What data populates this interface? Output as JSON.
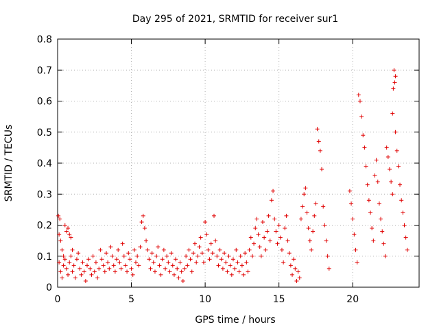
{
  "chart_data": {
    "type": "scatter",
    "title": "Day 295 of 2021, SRMTID for receiver sur1",
    "xlabel": "GPS time / hours",
    "ylabel": "SRMTID / TECUs",
    "xlim": [
      0,
      24.5
    ],
    "ylim": [
      0,
      0.8
    ],
    "x_ticks": [
      0,
      5,
      10,
      15,
      20
    ],
    "x_tick_labels": [
      "0",
      "5",
      "10",
      "15",
      "20"
    ],
    "y_ticks": [
      0,
      0.1,
      0.2,
      0.3,
      0.4,
      0.5,
      0.6,
      0.7,
      0.8
    ],
    "y_tick_labels": [
      "0",
      "0.1",
      "0.2",
      "0.3",
      "0.4",
      "0.5",
      "0.6",
      "0.7",
      "0.8"
    ],
    "grid": true,
    "marker": "+",
    "marker_color": "#e00000",
    "series": [
      {
        "name": "sur1",
        "points": [
          [
            0.05,
            0.23
          ],
          [
            0.15,
            0.22
          ],
          [
            0.1,
            0.17
          ],
          [
            0.2,
            0.15
          ],
          [
            0.3,
            0.12
          ],
          [
            0.4,
            0.1
          ],
          [
            0.5,
            0.2
          ],
          [
            0.6,
            0.18
          ],
          [
            0.7,
            0.19
          ],
          [
            0.8,
            0.17
          ],
          [
            0.9,
            0.16
          ],
          [
            1.0,
            0.12
          ],
          [
            0.1,
            0.08
          ],
          [
            0.2,
            0.05
          ],
          [
            0.3,
            0.03
          ],
          [
            0.4,
            0.07
          ],
          [
            0.5,
            0.09
          ],
          [
            0.6,
            0.06
          ],
          [
            0.7,
            0.04
          ],
          [
            0.8,
            0.08
          ],
          [
            0.9,
            0.1
          ],
          [
            1.0,
            0.05
          ],
          [
            1.1,
            0.07
          ],
          [
            1.2,
            0.03
          ],
          [
            1.3,
            0.09
          ],
          [
            1.4,
            0.11
          ],
          [
            1.5,
            0.06
          ],
          [
            1.6,
            0.04
          ],
          [
            1.7,
            0.08
          ],
          [
            1.8,
            0.05
          ],
          [
            1.9,
            0.02
          ],
          [
            2.0,
            0.07
          ],
          [
            2.1,
            0.09
          ],
          [
            2.2,
            0.06
          ],
          [
            2.3,
            0.04
          ],
          [
            2.4,
            0.1
          ],
          [
            2.5,
            0.05
          ],
          [
            2.6,
            0.08
          ],
          [
            2.7,
            0.03
          ],
          [
            2.8,
            0.06
          ],
          [
            2.9,
            0.12
          ],
          [
            3.0,
            0.09
          ],
          [
            3.1,
            0.07
          ],
          [
            3.2,
            0.05
          ],
          [
            3.3,
            0.11
          ],
          [
            3.4,
            0.08
          ],
          [
            3.5,
            0.06
          ],
          [
            3.6,
            0.13
          ],
          [
            3.7,
            0.1
          ],
          [
            3.8,
            0.07
          ],
          [
            3.9,
            0.05
          ],
          [
            4.0,
            0.09
          ],
          [
            4.1,
            0.12
          ],
          [
            4.2,
            0.08
          ],
          [
            4.3,
            0.06
          ],
          [
            4.4,
            0.14
          ],
          [
            4.5,
            0.1
          ],
          [
            4.6,
            0.07
          ],
          [
            4.7,
            0.05
          ],
          [
            4.8,
            0.11
          ],
          [
            4.9,
            0.09
          ],
          [
            5.0,
            0.06
          ],
          [
            5.1,
            0.04
          ],
          [
            5.2,
            0.12
          ],
          [
            5.3,
            0.08
          ],
          [
            5.4,
            0.1
          ],
          [
            5.5,
            0.07
          ],
          [
            5.6,
            0.13
          ],
          [
            5.7,
            0.21
          ],
          [
            5.8,
            0.23
          ],
          [
            5.9,
            0.19
          ],
          [
            6.0,
            0.15
          ],
          [
            6.1,
            0.12
          ],
          [
            6.2,
            0.09
          ],
          [
            6.3,
            0.06
          ],
          [
            6.4,
            0.11
          ],
          [
            6.5,
            0.08
          ],
          [
            6.6,
            0.05
          ],
          [
            6.7,
            0.1
          ],
          [
            6.8,
            0.13
          ],
          [
            6.9,
            0.07
          ],
          [
            7.0,
            0.04
          ],
          [
            7.1,
            0.09
          ],
          [
            7.2,
            0.12
          ],
          [
            7.3,
            0.06
          ],
          [
            7.4,
            0.1
          ],
          [
            7.5,
            0.08
          ],
          [
            7.6,
            0.05
          ],
          [
            7.7,
            0.11
          ],
          [
            7.8,
            0.07
          ],
          [
            7.9,
            0.04
          ],
          [
            8.0,
            0.09
          ],
          [
            8.1,
            0.06
          ],
          [
            8.2,
            0.03
          ],
          [
            8.3,
            0.08
          ],
          [
            8.4,
            0.05
          ],
          [
            8.5,
            0.02
          ],
          [
            8.6,
            0.06
          ],
          [
            8.7,
            0.1
          ],
          [
            8.8,
            0.07
          ],
          [
            8.9,
            0.12
          ],
          [
            9.0,
            0.09
          ],
          [
            9.1,
            0.05
          ],
          [
            9.2,
            0.11
          ],
          [
            9.3,
            0.14
          ],
          [
            9.4,
            0.08
          ],
          [
            9.5,
            0.1
          ],
          [
            9.6,
            0.13
          ],
          [
            9.7,
            0.16
          ],
          [
            9.8,
            0.11
          ],
          [
            9.9,
            0.08
          ],
          [
            10.0,
            0.21
          ],
          [
            10.1,
            0.17
          ],
          [
            10.2,
            0.12
          ],
          [
            10.3,
            0.09
          ],
          [
            10.4,
            0.14
          ],
          [
            10.5,
            0.11
          ],
          [
            10.6,
            0.23
          ],
          [
            10.7,
            0.15
          ],
          [
            10.8,
            0.1
          ],
          [
            10.9,
            0.07
          ],
          [
            11.0,
            0.12
          ],
          [
            11.1,
            0.09
          ],
          [
            11.2,
            0.06
          ],
          [
            11.3,
            0.11
          ],
          [
            11.4,
            0.08
          ],
          [
            11.5,
            0.05
          ],
          [
            11.6,
            0.1
          ],
          [
            11.7,
            0.07
          ],
          [
            11.8,
            0.04
          ],
          [
            11.9,
            0.09
          ],
          [
            12.0,
            0.06
          ],
          [
            12.1,
            0.12
          ],
          [
            12.2,
            0.08
          ],
          [
            12.3,
            0.05
          ],
          [
            12.4,
            0.1
          ],
          [
            12.5,
            0.07
          ],
          [
            12.6,
            0.04
          ],
          [
            12.7,
            0.11
          ],
          [
            12.8,
            0.08
          ],
          [
            12.9,
            0.05
          ],
          [
            13.0,
            0.12
          ],
          [
            13.1,
            0.16
          ],
          [
            13.2,
            0.1
          ],
          [
            13.3,
            0.14
          ],
          [
            13.4,
            0.19
          ],
          [
            13.5,
            0.22
          ],
          [
            13.6,
            0.17
          ],
          [
            13.7,
            0.13
          ],
          [
            13.8,
            0.1
          ],
          [
            13.9,
            0.21
          ],
          [
            14.0,
            0.16
          ],
          [
            14.1,
            0.12
          ],
          [
            14.2,
            0.18
          ],
          [
            14.3,
            0.23
          ],
          [
            14.4,
            0.15
          ],
          [
            14.5,
            0.28
          ],
          [
            14.6,
            0.31
          ],
          [
            14.7,
            0.22
          ],
          [
            14.8,
            0.18
          ],
          [
            14.9,
            0.14
          ],
          [
            15.0,
            0.2
          ],
          [
            15.1,
            0.16
          ],
          [
            15.2,
            0.12
          ],
          [
            15.3,
            0.08
          ],
          [
            15.4,
            0.19
          ],
          [
            15.5,
            0.23
          ],
          [
            15.6,
            0.15
          ],
          [
            15.7,
            0.11
          ],
          [
            15.8,
            0.07
          ],
          [
            15.9,
            0.04
          ],
          [
            16.0,
            0.09
          ],
          [
            16.1,
            0.06
          ],
          [
            16.2,
            0.02
          ],
          [
            16.3,
            0.05
          ],
          [
            16.4,
            0.03
          ],
          [
            16.5,
            0.22
          ],
          [
            16.6,
            0.26
          ],
          [
            16.7,
            0.3
          ],
          [
            16.8,
            0.32
          ],
          [
            16.9,
            0.24
          ],
          [
            17.0,
            0.19
          ],
          [
            17.1,
            0.15
          ],
          [
            17.2,
            0.12
          ],
          [
            17.3,
            0.18
          ],
          [
            17.4,
            0.23
          ],
          [
            17.5,
            0.27
          ],
          [
            17.6,
            0.51
          ],
          [
            17.7,
            0.47
          ],
          [
            17.8,
            0.44
          ],
          [
            17.9,
            0.38
          ],
          [
            18.0,
            0.26
          ],
          [
            18.1,
            0.2
          ],
          [
            18.2,
            0.15
          ],
          [
            18.3,
            0.1
          ],
          [
            18.4,
            0.06
          ],
          [
            19.8,
            0.31
          ],
          [
            19.9,
            0.27
          ],
          [
            20.0,
            0.22
          ],
          [
            20.1,
            0.17
          ],
          [
            20.2,
            0.12
          ],
          [
            20.3,
            0.08
          ],
          [
            20.4,
            0.62
          ],
          [
            20.5,
            0.6
          ],
          [
            20.6,
            0.55
          ],
          [
            20.7,
            0.49
          ],
          [
            20.8,
            0.45
          ],
          [
            20.9,
            0.39
          ],
          [
            21.0,
            0.33
          ],
          [
            21.1,
            0.28
          ],
          [
            21.2,
            0.24
          ],
          [
            21.3,
            0.19
          ],
          [
            21.4,
            0.15
          ],
          [
            21.5,
            0.36
          ],
          [
            21.6,
            0.41
          ],
          [
            21.7,
            0.34
          ],
          [
            21.8,
            0.27
          ],
          [
            21.9,
            0.22
          ],
          [
            22.0,
            0.18
          ],
          [
            22.1,
            0.14
          ],
          [
            22.2,
            0.1
          ],
          [
            22.3,
            0.45
          ],
          [
            22.4,
            0.42
          ],
          [
            22.5,
            0.38
          ],
          [
            22.6,
            0.34
          ],
          [
            22.7,
            0.3
          ],
          [
            22.8,
            0.7
          ],
          [
            22.9,
            0.68
          ],
          [
            22.85,
            0.66
          ],
          [
            22.75,
            0.64
          ],
          [
            22.7,
            0.56
          ],
          [
            22.9,
            0.5
          ],
          [
            23.0,
            0.44
          ],
          [
            23.1,
            0.39
          ],
          [
            23.2,
            0.33
          ],
          [
            23.3,
            0.28
          ],
          [
            23.4,
            0.24
          ],
          [
            23.5,
            0.2
          ],
          [
            23.6,
            0.16
          ],
          [
            23.7,
            0.12
          ]
        ]
      }
    ]
  }
}
